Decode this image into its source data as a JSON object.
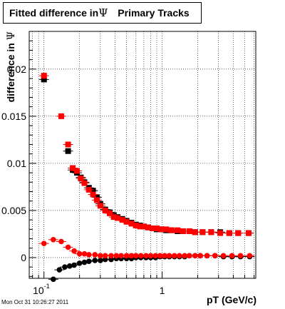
{
  "title": {
    "prefix": "Fitted difference in",
    "symbol": "Ψ",
    "suffix": "Primary Tracks"
  },
  "timestamp": "Mon Oct 31 10:26:27 2011",
  "chart_data": {
    "type": "scatter",
    "xlabel": "pT (GeV/c)",
    "ylabel_text": "difference in",
    "ylabel_symbol": "Ψ",
    "xscale": "log",
    "xlim": [
      0.075,
      6.2
    ],
    "ylim": [
      -0.0022,
      0.024
    ],
    "grid": true,
    "x_ticks": [
      {
        "value": 0.1,
        "label": "10",
        "sup": "-1"
      },
      {
        "value": 1,
        "label": "1",
        "sup": ""
      }
    ],
    "y_ticks": [
      {
        "value": 0,
        "label": "0"
      },
      {
        "value": 0.005,
        "label": "0.005"
      },
      {
        "value": 0.01,
        "label": "0.01"
      },
      {
        "value": 0.015,
        "label": "0.015"
      },
      {
        "value": 0.02,
        "label": "0.02"
      }
    ],
    "series": [
      {
        "marker": "square",
        "color": "#000000",
        "x": [
          0.1,
          0.16,
          0.175,
          0.19,
          0.205,
          0.22,
          0.24,
          0.26,
          0.28,
          0.3,
          0.33,
          0.36,
          0.39,
          0.42,
          0.46,
          0.5,
          0.55,
          0.6,
          0.65,
          0.7,
          0.76,
          0.83,
          0.9,
          0.98,
          1.08,
          1.2,
          1.35,
          1.5,
          1.7,
          1.9,
          2.2,
          2.6,
          3.1,
          3.7,
          4.4,
          5.4
        ],
        "y": [
          0.0189,
          0.0113,
          0.0093,
          0.009,
          0.0085,
          0.008,
          0.0074,
          0.0071,
          0.0064,
          0.0057,
          0.0051,
          0.0048,
          0.0045,
          0.0043,
          0.0041,
          0.0039,
          0.0037,
          0.0035,
          0.0034,
          0.0033,
          0.0032,
          0.0031,
          0.003,
          0.003,
          0.0029,
          0.0029,
          0.0028,
          0.0028,
          0.0028,
          0.0027,
          0.0027,
          0.0027,
          0.0027,
          0.0026,
          0.0026,
          0.0026
        ]
      },
      {
        "marker": "square",
        "color": "#ff0000",
        "x": [
          0.1,
          0.14,
          0.16,
          0.175,
          0.19,
          0.205,
          0.22,
          0.24,
          0.26,
          0.28,
          0.3,
          0.33,
          0.36,
          0.39,
          0.42,
          0.46,
          0.5,
          0.55,
          0.6,
          0.65,
          0.7,
          0.76,
          0.83,
          0.9,
          0.98,
          1.08,
          1.2,
          1.35,
          1.5,
          1.7,
          1.9,
          2.2,
          2.6,
          3.1,
          3.7,
          4.4,
          5.4
        ],
        "y": [
          0.0193,
          0.015,
          0.012,
          0.0095,
          0.0092,
          0.0084,
          0.0079,
          0.0072,
          0.0067,
          0.0061,
          0.0055,
          0.005,
          0.0047,
          0.0043,
          0.0042,
          0.004,
          0.0038,
          0.0036,
          0.0034,
          0.0033,
          0.0033,
          0.0032,
          0.0031,
          0.0031,
          0.003,
          0.003,
          0.0029,
          0.0029,
          0.0028,
          0.0028,
          0.0027,
          0.0027,
          0.0027,
          0.0026,
          0.0026,
          0.0026,
          0.0026
        ]
      },
      {
        "marker": "circle",
        "color": "#000000",
        "x": [
          0.12,
          0.135,
          0.15,
          0.165,
          0.18,
          0.2,
          0.22,
          0.24,
          0.27,
          0.3,
          0.33,
          0.37,
          0.41,
          0.45,
          0.5,
          0.55,
          0.6,
          0.66,
          0.73,
          0.8,
          0.88,
          0.96,
          1.05,
          1.15,
          1.27,
          1.4,
          1.55,
          1.7,
          1.9,
          2.1,
          2.4,
          2.8,
          3.3,
          3.9,
          4.6,
          5.5
        ],
        "y": [
          -0.0023,
          -0.0013,
          -0.001,
          -0.0009,
          -0.0008,
          -0.0006,
          -0.0005,
          -0.0004,
          -0.0003,
          -0.0003,
          -0.0002,
          -0.0002,
          -0.0001,
          -0.0001,
          -0.0001,
          -0.0001,
          0.0,
          0.0,
          0.0,
          0.0,
          0.0,
          0.0001,
          0.0001,
          0.0001,
          0.0001,
          0.0001,
          0.0001,
          0.0002,
          0.0002,
          0.0002,
          0.0002,
          0.0002,
          0.0001,
          0.0001,
          0.0001,
          0.0001
        ]
      },
      {
        "marker": "circle",
        "color": "#ff0000",
        "x": [
          0.1,
          0.12,
          0.14,
          0.16,
          0.18,
          0.2,
          0.22,
          0.24,
          0.27,
          0.3,
          0.33,
          0.37,
          0.41,
          0.45,
          0.5,
          0.55,
          0.6,
          0.66,
          0.73,
          0.8,
          0.88,
          0.96,
          1.05,
          1.15,
          1.27,
          1.4,
          1.55,
          1.7,
          1.9,
          2.1,
          2.4,
          2.8,
          3.3,
          3.9,
          4.6,
          5.5
        ],
        "y": [
          0.0015,
          0.0019,
          0.0017,
          0.0011,
          0.0007,
          0.0004,
          0.0004,
          0.0003,
          0.0003,
          0.0002,
          0.0002,
          0.0002,
          0.0002,
          0.0002,
          0.0002,
          0.0002,
          0.0002,
          0.0002,
          0.0002,
          0.0002,
          0.0002,
          0.0002,
          0.0002,
          0.0002,
          0.0002,
          0.0002,
          0.0002,
          0.0002,
          0.0002,
          0.0002,
          0.0002,
          0.0002,
          0.0002,
          0.0002,
          0.0002,
          0.0002
        ]
      }
    ]
  }
}
